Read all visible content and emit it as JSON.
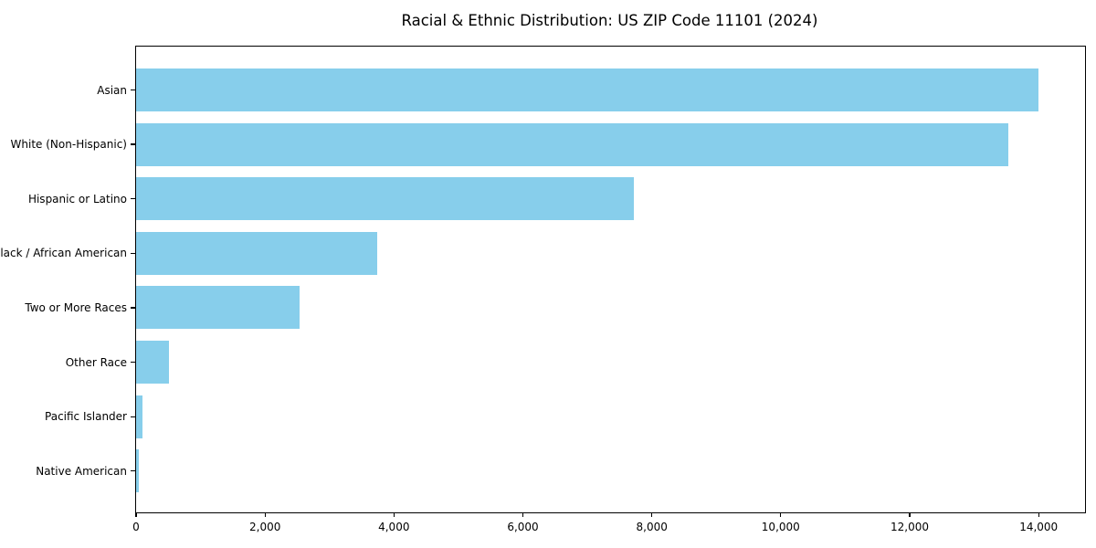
{
  "chart_data": {
    "type": "bar",
    "orientation": "horizontal",
    "title": "Racial & Ethnic Distribution: US ZIP Code 11101 (2024)",
    "categories": [
      "Asian",
      "White (Non-Hispanic)",
      "Hispanic or Latino",
      "Black / African American",
      "Two or More Races",
      "Other Race",
      "Pacific Islander",
      "Native American"
    ],
    "values": [
      14000,
      13530,
      7720,
      3740,
      2530,
      510,
      100,
      45
    ],
    "xlabel": "",
    "ylabel": "",
    "xlim": [
      0,
      14720
    ],
    "x_ticks": [
      0,
      2000,
      4000,
      6000,
      8000,
      10000,
      12000,
      14000
    ],
    "x_tick_labels": [
      "0",
      "2,000",
      "4,000",
      "6,000",
      "8,000",
      "10,000",
      "12,000",
      "14,000"
    ],
    "grid": false,
    "legend_position": "none",
    "bar_color": "#87CEEB",
    "frame_color": "#000000",
    "background_color": "#FFFFFF",
    "text_color": "#000000"
  }
}
